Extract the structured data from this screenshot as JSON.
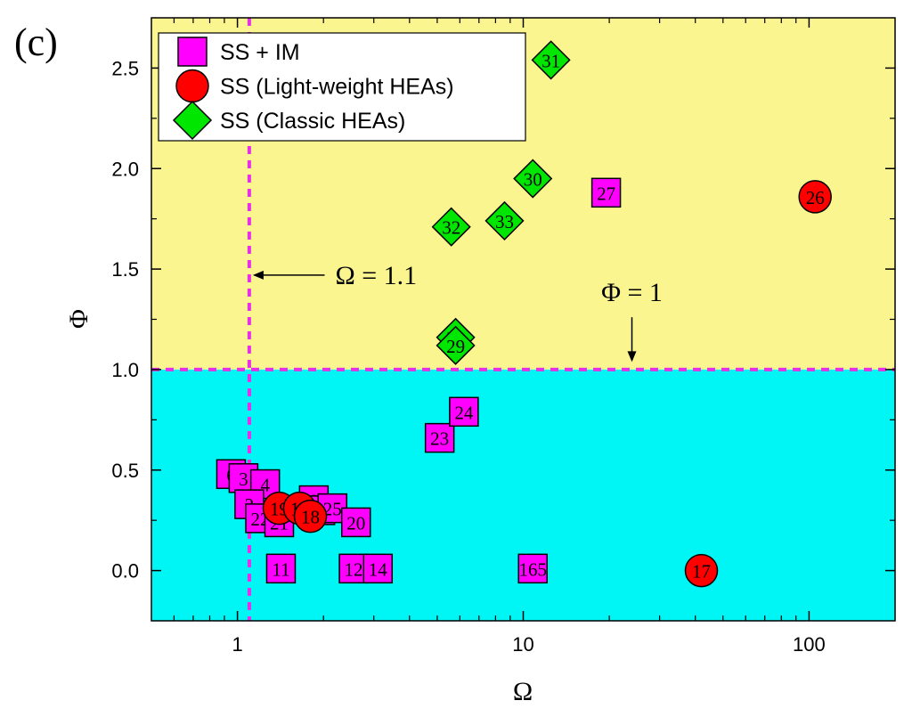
{
  "panel_label": "(c)",
  "chart_data": {
    "type": "scatter",
    "xlabel": "Ω",
    "ylabel": "Φ",
    "x_scale": "log",
    "xlim": [
      0.5,
      200
    ],
    "ylim": [
      -0.25,
      2.75
    ],
    "x_ticks": [
      1,
      10,
      100
    ],
    "x_tick_labels": [
      "1",
      "10",
      "100"
    ],
    "y_ticks": [
      0.0,
      0.5,
      1.0,
      1.5,
      2.0,
      2.5
    ],
    "y_tick_labels": [
      "0.0",
      "0.5",
      "1.0",
      "1.5",
      "2.0",
      "2.5"
    ],
    "regions": [
      {
        "name": "phi-above-1",
        "y_from": 1.0,
        "y_to": 2.75,
        "color": "#FBF58F"
      },
      {
        "name": "phi-below-1",
        "y_from": -0.25,
        "y_to": 1.0,
        "color": "#00F5F5"
      }
    ],
    "threshold_lines": [
      {
        "axis": "x",
        "value": 1.1,
        "color": "#E62FE6"
      },
      {
        "axis": "y",
        "value": 1.0,
        "color": "#E62FE6"
      }
    ],
    "annotations": [
      {
        "text": "Ω = 1.1",
        "arrow_to": [
          1.1,
          1.47
        ],
        "text_at": [
          2.2,
          1.47
        ]
      },
      {
        "text": "Φ = 1",
        "arrow_to": [
          24,
          1.02
        ],
        "text_at": [
          24,
          1.34
        ]
      }
    ],
    "legend_position": "top-left",
    "series": [
      {
        "name": "SS + IM",
        "marker": "square",
        "color": "#FF00FF",
        "points": [
          {
            "x": 0.95,
            "y": 0.48,
            "label": "6"
          },
          {
            "x": 1.05,
            "y": 0.46,
            "label": "3"
          },
          {
            "x": 1.25,
            "y": 0.43,
            "label": "4"
          },
          {
            "x": 1.1,
            "y": 0.33,
            "label": "2"
          },
          {
            "x": 1.2,
            "y": 0.26,
            "label": "22"
          },
          {
            "x": 1.4,
            "y": 0.24,
            "label": "21"
          },
          {
            "x": 1.85,
            "y": 0.35,
            "label": "8"
          },
          {
            "x": 1.95,
            "y": 0.3,
            "label": "9"
          },
          {
            "x": 2.15,
            "y": 0.31,
            "label": "25"
          },
          {
            "x": 2.6,
            "y": 0.24,
            "label": "20"
          },
          {
            "x": 1.42,
            "y": 0.01,
            "label": "11"
          },
          {
            "x": 2.55,
            "y": 0.01,
            "label": "12"
          },
          {
            "x": 3.1,
            "y": 0.01,
            "label": "14"
          },
          {
            "x": 10.8,
            "y": 0.01,
            "label": "165"
          },
          {
            "x": 5.1,
            "y": 0.66,
            "label": "23"
          },
          {
            "x": 6.2,
            "y": 0.79,
            "label": "24"
          },
          {
            "x": 19.5,
            "y": 1.88,
            "label": "27"
          }
        ]
      },
      {
        "name": "SS (Light-weight HEAs)",
        "marker": "circle",
        "color": "#FF0000",
        "points": [
          {
            "x": 1.4,
            "y": 0.31,
            "label": "19"
          },
          {
            "x": 1.65,
            "y": 0.31,
            "label": "15"
          },
          {
            "x": 1.8,
            "y": 0.27,
            "label": "18"
          },
          {
            "x": 42,
            "y": 0.0,
            "label": "17"
          },
          {
            "x": 105,
            "y": 1.86,
            "label": "26"
          }
        ]
      },
      {
        "name": "SS (Classic HEAs)",
        "marker": "diamond",
        "color": "#00E600",
        "points": [
          {
            "x": 12.5,
            "y": 2.54,
            "label": "31"
          },
          {
            "x": 10.8,
            "y": 1.95,
            "label": "30"
          },
          {
            "x": 5.6,
            "y": 1.71,
            "label": "32"
          },
          {
            "x": 8.6,
            "y": 1.74,
            "label": "33"
          },
          {
            "x": 5.8,
            "y": 1.16,
            "label": "28"
          },
          {
            "x": 5.8,
            "y": 1.12,
            "label": "29"
          }
        ]
      }
    ]
  }
}
